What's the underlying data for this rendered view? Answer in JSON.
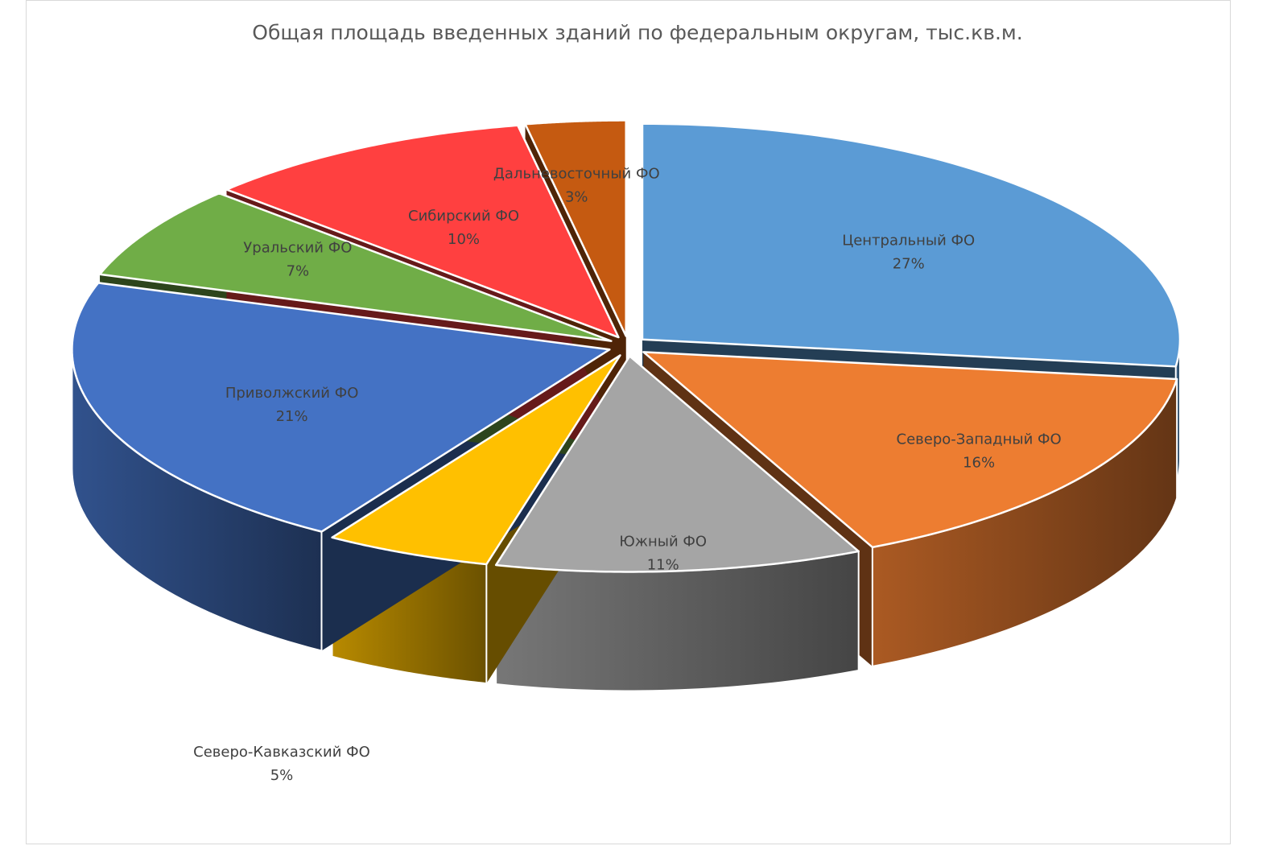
{
  "chart_data": {
    "type": "pie",
    "title": "Общая площадь введенных зданий по федеральным округам, тыс.кв.м.",
    "categories": [
      "Центральный ФО",
      "Северо-Западный ФО",
      "Южный ФО",
      "Северо-Кавказский ФО",
      "Приволжский ФО",
      "Уральский ФО",
      "Сибирский ФО",
      "Дальневосточный ФО"
    ],
    "values": [
      27,
      16,
      11,
      5,
      21,
      7,
      10,
      3
    ],
    "value_labels": [
      "27%",
      "16%",
      "11%",
      "5%",
      "21%",
      "7%",
      "10%",
      "3%"
    ],
    "colors": [
      "#5b9bd5",
      "#ed7d31",
      "#a5a5a5",
      "#ffc000",
      "#4472c4",
      "#70ad47",
      "#ff4040",
      "#c55a11"
    ],
    "style": "3d-exploded"
  }
}
